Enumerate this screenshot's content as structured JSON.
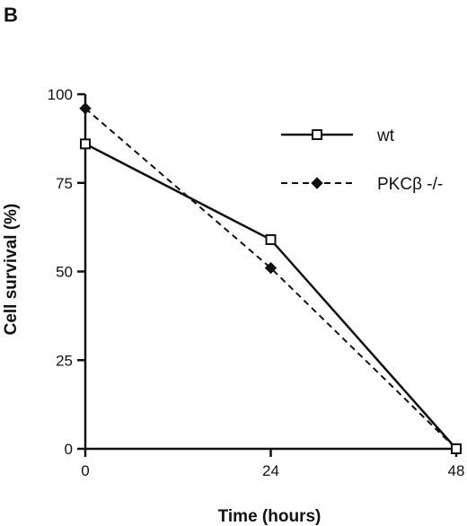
{
  "panel_label": "B",
  "chart_data": {
    "type": "line",
    "title": "",
    "xlabel": "Time  (hours)",
    "ylabel": "Cell  survival  (%)",
    "x": [
      0,
      24,
      48
    ],
    "xticks": [
      0,
      24,
      48
    ],
    "xtick_labels": [
      "0",
      "24",
      "48"
    ],
    "yticks": [
      0,
      25,
      50,
      75,
      100
    ],
    "ytick_labels": [
      "0",
      "25",
      "50",
      "75",
      "100"
    ],
    "xlim": [
      0,
      48
    ],
    "ylim": [
      0,
      100
    ],
    "grid": false,
    "legend_position": "top-right",
    "series": [
      {
        "name": "wt",
        "values": [
          86,
          59,
          0
        ],
        "line_style": "solid",
        "marker": "open-square",
        "color": "#111111"
      },
      {
        "name": "PKCβ -/-",
        "values": [
          96,
          51,
          0
        ],
        "line_style": "dashed",
        "marker": "filled-diamond",
        "color": "#111111"
      }
    ]
  }
}
